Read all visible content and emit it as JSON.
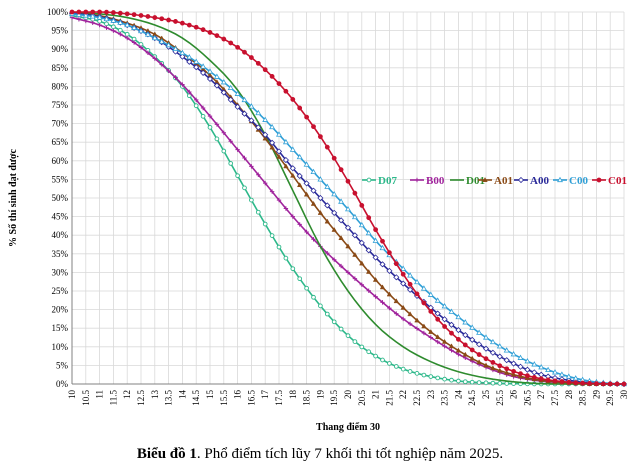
{
  "caption": {
    "prefix": "Biểu đồ 1",
    "text": ". Phổ điểm tích lũy 7 khối thi tốt nghiệp năm 2025."
  },
  "chart_data": {
    "type": "line",
    "title": "",
    "xlabel": "Thang điểm 30",
    "ylabel": "% Số thí sinh đạt được",
    "xlim": [
      10,
      30
    ],
    "ylim": [
      0,
      100
    ],
    "x_ticks": [
      "10",
      "10.5",
      "11",
      "11.5",
      "12",
      "12.5",
      "13",
      "13.5",
      "14",
      "14.5",
      "15",
      "15.5",
      "16",
      "16.5",
      "17",
      "17.5",
      "18",
      "18.5",
      "19",
      "19.5",
      "20",
      "20.5",
      "21",
      "21.5",
      "22",
      "22.5",
      "23",
      "23.5",
      "24",
      "24.5",
      "25",
      "25.5",
      "26",
      "26.5",
      "27",
      "27.5",
      "28",
      "28.5",
      "29",
      "29.5",
      "30"
    ],
    "y_ticks": [
      "0%",
      "5%",
      "10%",
      "15%",
      "20%",
      "25%",
      "30%",
      "35%",
      "40%",
      "45%",
      "50%",
      "55%",
      "60%",
      "65%",
      "70%",
      "75%",
      "80%",
      "85%",
      "90%",
      "95%",
      "100%"
    ],
    "grid": true,
    "legend_position": "right",
    "x_step": 0.25,
    "series": [
      {
        "name": "D07",
        "color": "#2db88a",
        "marker": "circle-open",
        "values": [
          [
            10,
            99
          ],
          [
            11,
            97.5
          ],
          [
            12,
            94
          ],
          [
            13,
            88
          ],
          [
            14,
            80
          ],
          [
            15,
            69
          ],
          [
            16,
            56
          ],
          [
            17,
            43
          ],
          [
            18,
            31
          ],
          [
            19,
            21
          ],
          [
            20,
            13
          ],
          [
            21,
            7.5
          ],
          [
            22,
            4
          ],
          [
            23,
            2
          ],
          [
            24,
            0.8
          ],
          [
            25,
            0.3
          ],
          [
            26,
            0.1
          ],
          [
            27,
            0
          ],
          [
            30,
            0
          ]
        ]
      },
      {
        "name": "B00",
        "color": "#a0239c",
        "marker": "plus",
        "values": [
          [
            10,
            98.5
          ],
          [
            11,
            96.5
          ],
          [
            12,
            93
          ],
          [
            13,
            87.5
          ],
          [
            14,
            80.5
          ],
          [
            15,
            72
          ],
          [
            16,
            63
          ],
          [
            17,
            54
          ],
          [
            18,
            45
          ],
          [
            19,
            37
          ],
          [
            20,
            30
          ],
          [
            21,
            23.5
          ],
          [
            22,
            17.5
          ],
          [
            23,
            12.5
          ],
          [
            24,
            8
          ],
          [
            25,
            4.5
          ],
          [
            26,
            2
          ],
          [
            27,
            0.8
          ],
          [
            28,
            0.2
          ],
          [
            29,
            0
          ],
          [
            30,
            0
          ]
        ]
      },
      {
        "name": "D01",
        "color": "#2e8b2e",
        "marker": "line",
        "values": [
          [
            10,
            100
          ],
          [
            11,
            99.5
          ],
          [
            12,
            98.5
          ],
          [
            13,
            96.5
          ],
          [
            14,
            93
          ],
          [
            15,
            87
          ],
          [
            16,
            79
          ],
          [
            17,
            67
          ],
          [
            18,
            52
          ],
          [
            19,
            37
          ],
          [
            20,
            25
          ],
          [
            21,
            16
          ],
          [
            22,
            10
          ],
          [
            23,
            6
          ],
          [
            24,
            3.3
          ],
          [
            25,
            1.6
          ],
          [
            26,
            0.6
          ],
          [
            27,
            0.1
          ],
          [
            28,
            0
          ],
          [
            30,
            0
          ]
        ]
      },
      {
        "name": "A01",
        "color": "#8a4a16",
        "marker": "triangle",
        "values": [
          [
            10,
            99.8
          ],
          [
            11,
            99
          ],
          [
            12,
            97
          ],
          [
            13,
            94
          ],
          [
            14,
            89
          ],
          [
            15,
            83
          ],
          [
            16,
            75
          ],
          [
            17,
            66
          ],
          [
            18,
            56
          ],
          [
            19,
            46
          ],
          [
            20,
            37
          ],
          [
            21,
            28
          ],
          [
            22,
            20.5
          ],
          [
            23,
            14
          ],
          [
            24,
            9
          ],
          [
            25,
            5
          ],
          [
            26,
            2.5
          ],
          [
            27,
            1
          ],
          [
            28,
            0.3
          ],
          [
            29,
            0
          ],
          [
            30,
            0
          ]
        ]
      },
      {
        "name": "A00",
        "color": "#2a2a9a",
        "marker": "diamond-open",
        "values": [
          [
            10,
            99.7
          ],
          [
            11,
            98.7
          ],
          [
            12,
            96.5
          ],
          [
            13,
            93
          ],
          [
            14,
            88
          ],
          [
            15,
            82
          ],
          [
            16,
            74.5
          ],
          [
            17,
            67
          ],
          [
            18,
            58
          ],
          [
            19,
            50
          ],
          [
            20,
            42
          ],
          [
            21,
            34
          ],
          [
            22,
            27
          ],
          [
            23,
            20.5
          ],
          [
            24,
            14.5
          ],
          [
            25,
            9.5
          ],
          [
            26,
            5.5
          ],
          [
            27,
            2.5
          ],
          [
            28,
            1
          ],
          [
            29,
            0.2
          ],
          [
            30,
            0
          ]
        ]
      },
      {
        "name": "C00",
        "color": "#2f9fd6",
        "marker": "triangle-open",
        "values": [
          [
            10,
            99.5
          ],
          [
            11,
            98.5
          ],
          [
            12,
            96.5
          ],
          [
            13,
            93
          ],
          [
            14,
            89
          ],
          [
            15,
            84
          ],
          [
            16,
            78
          ],
          [
            17,
            71
          ],
          [
            18,
            63
          ],
          [
            19,
            55
          ],
          [
            20,
            47
          ],
          [
            21,
            38.5
          ],
          [
            22,
            31
          ],
          [
            23,
            24
          ],
          [
            24,
            18
          ],
          [
            25,
            12.5
          ],
          [
            26,
            8
          ],
          [
            27,
            4.5
          ],
          [
            28,
            2
          ],
          [
            29,
            0.5
          ],
          [
            30,
            0
          ]
        ]
      },
      {
        "name": "C01",
        "color": "#c8102e",
        "marker": "circle-filled",
        "values": [
          [
            10,
            100
          ],
          [
            11,
            100
          ],
          [
            12,
            99.5
          ],
          [
            13,
            98.5
          ],
          [
            14,
            97
          ],
          [
            15,
            94.5
          ],
          [
            16,
            90.5
          ],
          [
            17,
            84.5
          ],
          [
            18,
            76.5
          ],
          [
            19,
            66.5
          ],
          [
            20,
            54.5
          ],
          [
            21,
            41.5
          ],
          [
            22,
            29.5
          ],
          [
            23,
            19.5
          ],
          [
            24,
            12
          ],
          [
            25,
            6.8
          ],
          [
            26,
            3.4
          ],
          [
            27,
            1.4
          ],
          [
            28,
            0.5
          ],
          [
            29,
            0.1
          ],
          [
            30,
            0
          ]
        ]
      }
    ]
  }
}
